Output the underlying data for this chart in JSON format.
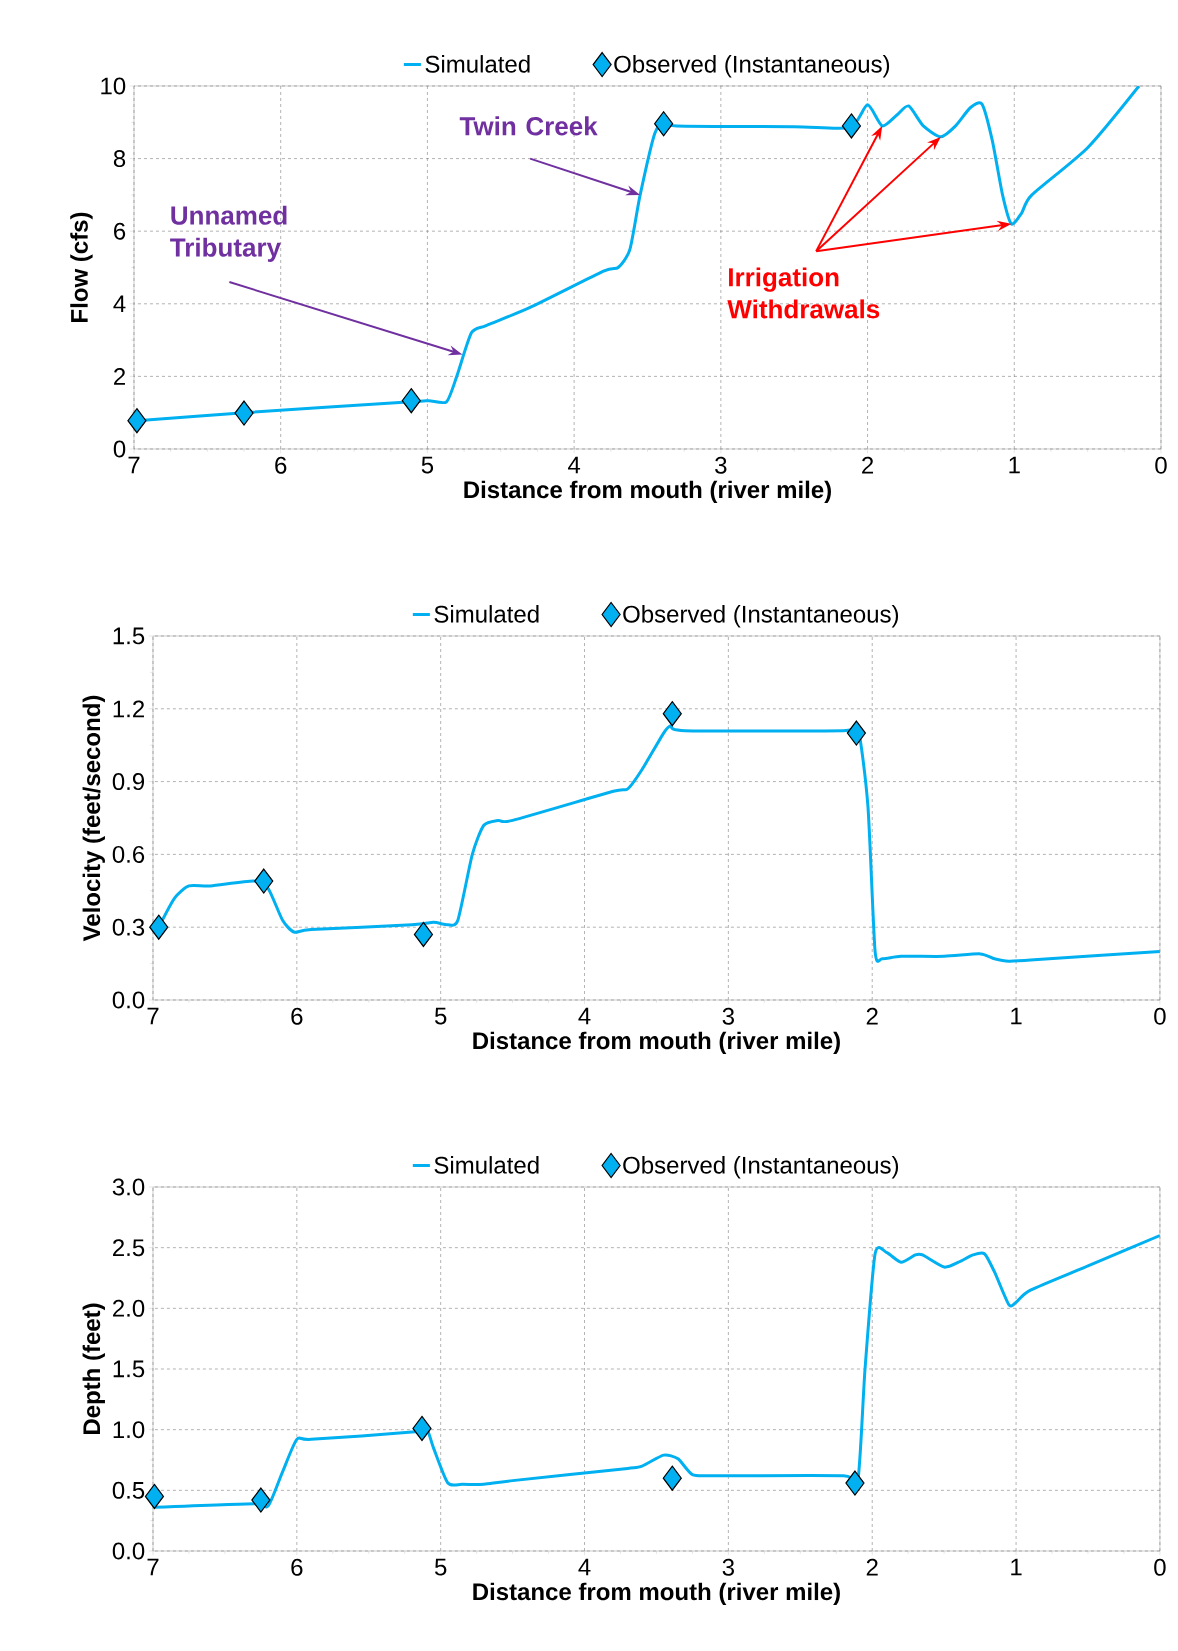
{
  "chart_data": [
    {
      "type": "line",
      "xlabel": "Distance from mouth (river mile)",
      "ylabel": "Flow (cfs)",
      "xlim": [
        7,
        0
      ],
      "ylim": [
        0,
        10
      ],
      "xticks": [
        7,
        6,
        5,
        4,
        3,
        2,
        1,
        0
      ],
      "yticks": [
        0,
        2,
        4,
        6,
        8,
        10
      ],
      "grid": true,
      "legend": "top",
      "line_style": "solid",
      "series": [
        {
          "name": "Simulated",
          "type": "line",
          "marker": "none",
          "color": "#00b0f0",
          "x": [
            6.98,
            6.25,
            5.11,
            4.99,
            4.87,
            4.8,
            4.7,
            4.6,
            4.3,
            3.8,
            3.7,
            3.62,
            3.55,
            3.45,
            3.38,
            3.3,
            2.5,
            2.12,
            2.0,
            1.9,
            1.8,
            1.72,
            1.62,
            1.5,
            1.4,
            1.3,
            1.22,
            1.15,
            1.08,
            1.02,
            0.95,
            0.88,
            0.5,
            0.15
          ],
          "values": [
            0.78,
            1.0,
            1.3,
            1.33,
            1.3,
            2.0,
            3.2,
            3.4,
            3.9,
            4.9,
            5.0,
            5.5,
            7.0,
            8.7,
            9.0,
            8.9,
            8.88,
            8.86,
            9.48,
            8.9,
            9.2,
            9.45,
            8.9,
            8.6,
            8.9,
            9.4,
            9.5,
            8.5,
            7.0,
            6.2,
            6.5,
            7.0,
            8.3,
            10.0
          ]
        },
        {
          "name": "Observed (Instantaneous)",
          "type": "scatter",
          "marker": "diamond",
          "color": "#00b0f0",
          "x": [
            6.98,
            6.25,
            5.11,
            3.39,
            2.11
          ],
          "values": [
            0.78,
            0.99,
            1.33,
            8.96,
            8.9
          ]
        }
      ],
      "annotations": [
        {
          "text": "Twin Creek",
          "x": 3.55,
          "y": 7.0
        },
        {
          "text": "Unnamed Tributary",
          "x": 4.76,
          "y": 2.6
        },
        {
          "text": "Irrigation Withdrawals",
          "x": 1.02,
          "y": 6.2
        }
      ]
    },
    {
      "type": "line",
      "xlabel": "Distance from mouth (river mile)",
      "ylabel": "Velocity (feet/second)",
      "xlim": [
        7,
        0
      ],
      "ylim": [
        0,
        1.5
      ],
      "xticks": [
        7,
        6,
        5,
        4,
        3,
        2,
        1,
        0
      ],
      "yticks": [
        {
          "value": 0,
          "label": "0.0"
        },
        0.3,
        {
          "value": 0.6,
          "label": "0.6"
        },
        0.9,
        1.2,
        1.5
      ],
      "grid": true,
      "legend": "top",
      "line_style": "solid",
      "series": [
        {
          "name": "Simulated",
          "type": "line",
          "marker": "none",
          "color": "#00b0f0",
          "x": [
            6.96,
            6.85,
            6.75,
            6.6,
            6.3,
            6.2,
            6.1,
            6.02,
            5.9,
            5.2,
            5.05,
            4.95,
            4.88,
            4.78,
            4.7,
            4.6,
            4.5,
            3.8,
            3.7,
            3.6,
            3.45,
            3.4,
            3.3,
            2.2,
            2.1,
            2.03,
            1.98,
            1.93,
            1.8,
            1.5,
            1.25,
            1.15,
            1.05,
            0.9,
            0
          ],
          "values": [
            0.3,
            0.42,
            0.47,
            0.47,
            0.49,
            0.46,
            0.33,
            0.28,
            0.29,
            0.31,
            0.32,
            0.31,
            0.33,
            0.6,
            0.72,
            0.74,
            0.74,
            0.86,
            0.87,
            0.95,
            1.1,
            1.13,
            1.11,
            1.11,
            1.12,
            0.8,
            0.2,
            0.17,
            0.18,
            0.18,
            0.19,
            0.17,
            0.16,
            0.165,
            0.2
          ]
        },
        {
          "name": "Observed (Instantaneous)",
          "type": "scatter",
          "marker": "diamond",
          "color": "#00b0f0",
          "x": [
            6.96,
            6.23,
            5.12,
            3.39,
            2.11
          ],
          "values": [
            0.3,
            0.49,
            0.27,
            1.18,
            1.1
          ]
        }
      ]
    },
    {
      "type": "line",
      "xlabel": "Distance from mouth (river mile)",
      "ylabel": "Depth (feet)",
      "xlim": [
        7,
        0
      ],
      "ylim": [
        0,
        3
      ],
      "xticks": [
        7,
        6,
        5,
        4,
        3,
        2,
        1,
        0
      ],
      "yticks": [
        {
          "value": 0,
          "label": "0.0"
        },
        0.5,
        {
          "value": 1,
          "label": "1.0"
        },
        1.5,
        {
          "value": 2,
          "label": "2.0"
        },
        2.5,
        {
          "value": 3,
          "label": "3.0"
        }
      ],
      "grid": true,
      "legend": "top",
      "line_style": "solid",
      "series": [
        {
          "name": "Simulated",
          "type": "line",
          "marker": "none",
          "color": "#00b0f0",
          "x": [
            6.99,
            6.3,
            6.2,
            6.1,
            6.0,
            5.9,
            5.2,
            5.1,
            5.05,
            4.95,
            4.85,
            4.7,
            4.5,
            3.7,
            3.6,
            3.45,
            3.35,
            3.25,
            3.1,
            2.2,
            2.1,
            2.05,
            1.98,
            1.9,
            1.8,
            1.7,
            1.65,
            1.5,
            1.4,
            1.3,
            1.22,
            1.15,
            1.05,
            1.0,
            0.9,
            0.5,
            0
          ],
          "values": [
            0.36,
            0.39,
            0.37,
            0.65,
            0.92,
            0.92,
            0.98,
            1.01,
            0.85,
            0.56,
            0.55,
            0.55,
            0.58,
            0.68,
            0.7,
            0.79,
            0.76,
            0.63,
            0.62,
            0.62,
            0.58,
            1.5,
            2.45,
            2.46,
            2.38,
            2.44,
            2.44,
            2.34,
            2.38,
            2.44,
            2.45,
            2.3,
            2.03,
            2.05,
            2.15,
            2.35,
            2.6
          ]
        },
        {
          "name": "Observed (Instantaneous)",
          "type": "scatter",
          "marker": "diamond",
          "color": "#00b0f0",
          "x": [
            6.99,
            6.25,
            5.13,
            3.39,
            2.12
          ],
          "values": [
            0.45,
            0.42,
            1.01,
            0.6,
            0.56
          ]
        }
      ]
    }
  ]
}
